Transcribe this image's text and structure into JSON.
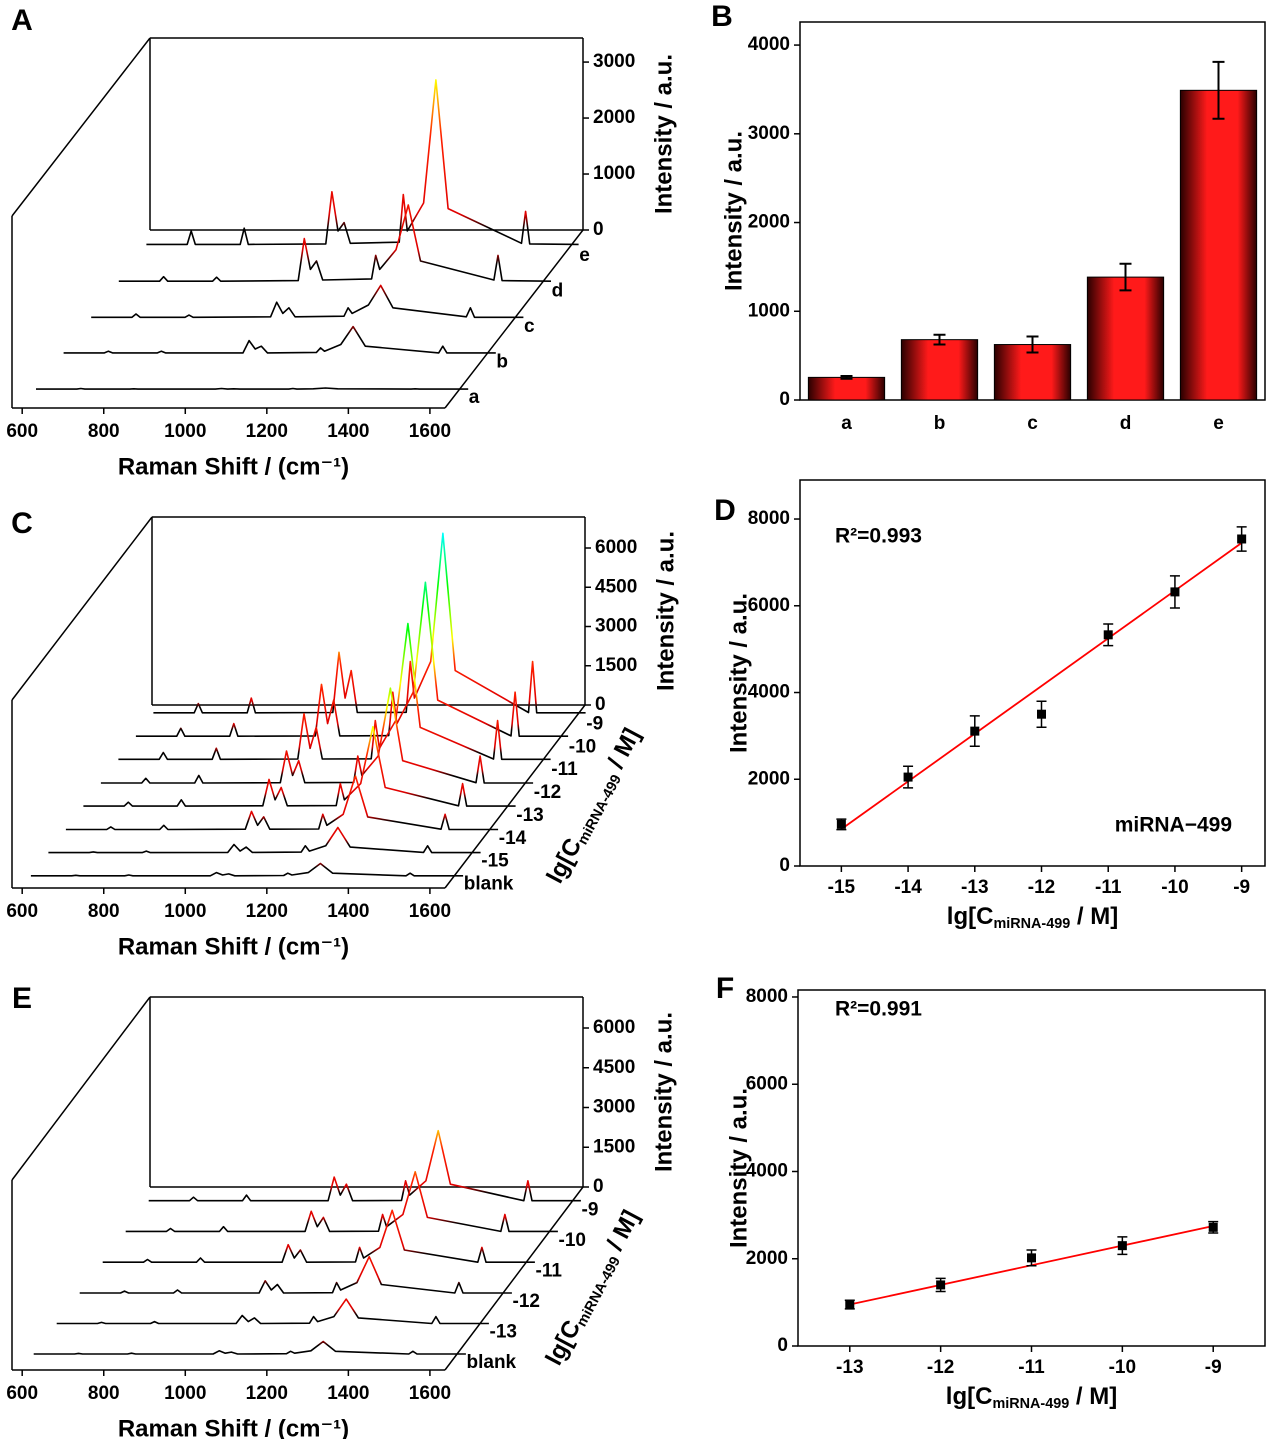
{
  "chart_data": [
    {
      "type": "waterfall",
      "panel_label": "A",
      "x": [
        600,
        700,
        710,
        720,
        830,
        840,
        850,
        1040,
        1055,
        1070,
        1085,
        1100,
        1220,
        1230,
        1240,
        1280,
        1310,
        1340,
        1520,
        1530,
        1540,
        1660
      ],
      "series": [
        {
          "name": "a",
          "values": [
            20,
            20,
            30,
            20,
            20,
            25,
            20,
            20,
            30,
            20,
            25,
            20,
            20,
            30,
            20,
            25,
            40,
            25,
            20,
            25,
            20,
            20
          ]
        },
        {
          "name": "b",
          "values": [
            30,
            30,
            60,
            30,
            30,
            60,
            30,
            30,
            250,
            100,
            150,
            30,
            40,
            120,
            60,
            180,
            500,
            150,
            30,
            150,
            30,
            30
          ]
        },
        {
          "name": "c",
          "values": [
            30,
            30,
            90,
            30,
            30,
            70,
            30,
            40,
            300,
            100,
            200,
            40,
            50,
            200,
            100,
            250,
            600,
            200,
            40,
            200,
            30,
            30
          ]
        },
        {
          "name": "d",
          "values": [
            40,
            40,
            120,
            40,
            40,
            110,
            40,
            50,
            800,
            250,
            400,
            60,
            80,
            500,
            250,
            600,
            1400,
            400,
            60,
            500,
            50,
            40
          ]
        },
        {
          "name": "e",
          "values": [
            60,
            60,
            300,
            60,
            60,
            350,
            60,
            70,
            1000,
            300,
            450,
            80,
            100,
            950,
            300,
            800,
            3000,
            700,
            80,
            650,
            70,
            60
          ]
        }
      ],
      "xlim": [
        575,
        1637
      ],
      "xticks": [
        600,
        800,
        1000,
        1200,
        1400,
        1600
      ],
      "zlim": [
        0,
        3430
      ],
      "zticks": [
        0,
        1000,
        2000,
        3000
      ],
      "x_label": "Raman Shift / (cm⁻¹)",
      "z_label": "Intensity / a.u.",
      "peak_colors": [
        "#000000",
        "#e00000",
        "#ff2000",
        "#ffff00",
        "#00ff00",
        "#00ffff"
      ]
    },
    {
      "type": "bar",
      "panel_label": "B",
      "categories": [
        "a",
        "b",
        "c",
        "d",
        "e"
      ],
      "values": [
        255,
        680,
        625,
        1385,
        3490
      ],
      "errors": [
        15,
        55,
        90,
        150,
        320
      ],
      "color": "#ff1a1a",
      "edge_color": "#2a0000",
      "ylim": [
        0,
        4260
      ],
      "yticks": [
        0,
        1000,
        2000,
        3000,
        4000
      ],
      "y_label": "Intensity / a.u."
    },
    {
      "type": "waterfall",
      "panel_label": "C",
      "x": [
        600,
        700,
        710,
        720,
        830,
        840,
        850,
        1040,
        1055,
        1070,
        1085,
        1100,
        1220,
        1230,
        1240,
        1280,
        1310,
        1340,
        1520,
        1530,
        1540,
        1660
      ],
      "series": [
        {
          "name": "blank",
          "values": [
            30,
            30,
            50,
            30,
            30,
            60,
            30,
            30,
            150,
            60,
            100,
            30,
            40,
            130,
            60,
            150,
            500,
            130,
            30,
            130,
            30,
            30
          ]
        },
        {
          "name": "-15",
          "values": [
            40,
            40,
            70,
            40,
            40,
            100,
            40,
            50,
            350,
            100,
            250,
            50,
            60,
            300,
            100,
            300,
            1000,
            250,
            50,
            300,
            40,
            40
          ]
        },
        {
          "name": "-14",
          "values": [
            50,
            50,
            150,
            50,
            50,
            210,
            50,
            60,
            740,
            210,
            530,
            60,
            70,
            630,
            210,
            630,
            2100,
            530,
            60,
            630,
            50,
            50
          ]
        },
        {
          "name": "-13",
          "values": [
            70,
            70,
            220,
            70,
            70,
            310,
            70,
            80,
            1090,
            310,
            780,
            80,
            90,
            930,
            310,
            930,
            3100,
            780,
            80,
            930,
            70,
            70
          ]
        },
        {
          "name": "-12",
          "values": [
            80,
            80,
            260,
            80,
            80,
            370,
            80,
            90,
            1300,
            370,
            930,
            90,
            100,
            1110,
            370,
            1110,
            3700,
            930,
            90,
            1110,
            80,
            80
          ]
        },
        {
          "name": "-11",
          "values": [
            110,
            110,
            370,
            110,
            110,
            530,
            110,
            120,
            1850,
            530,
            1330,
            120,
            130,
            1590,
            530,
            1590,
            5300,
            1330,
            120,
            1590,
            110,
            110
          ]
        },
        {
          "name": "-10",
          "values": [
            120,
            120,
            420,
            120,
            120,
            600,
            120,
            130,
            2100,
            600,
            1500,
            130,
            140,
            1800,
            600,
            1800,
            6000,
            1500,
            130,
            1800,
            120,
            120
          ]
        },
        {
          "name": "-9",
          "values": [
            140,
            140,
            490,
            140,
            140,
            700,
            140,
            150,
            2450,
            700,
            1750,
            150,
            160,
            2100,
            700,
            2100,
            7000,
            1750,
            150,
            2100,
            140,
            140
          ]
        }
      ],
      "xlim": [
        575,
        1637
      ],
      "xticks": [
        600,
        800,
        1000,
        1200,
        1400,
        1600
      ],
      "zlim": [
        0,
        7185
      ],
      "zticks": [
        0,
        1500,
        3000,
        4500,
        6000
      ],
      "x_label": "Raman Shift / (cm⁻¹)",
      "z_label": "Intensity / a.u.",
      "depth_label": [
        "lg[C",
        "miRNA-499",
        " / M]"
      ],
      "peak_colors": [
        "#000000",
        "#e00000",
        "#ff2000",
        "#ffff00",
        "#00ff00",
        "#00ffff"
      ]
    },
    {
      "type": "scatter",
      "panel_label": "D",
      "x": [
        -15,
        -14,
        -13,
        -12,
        -11,
        -10,
        -9
      ],
      "values": [
        960,
        2050,
        3110,
        3500,
        5330,
        6320,
        7540
      ],
      "errors": [
        120,
        250,
        350,
        300,
        250,
        370,
        280
      ],
      "color": "#000000",
      "fit": {
        "x": [
          -15,
          -9
        ],
        "values": [
          850,
          7450
        ],
        "color": "#ff0000"
      },
      "xlim": [
        -15.62,
        -8.65
      ],
      "xticks": [
        -15,
        -14,
        -13,
        -12,
        -11,
        -10,
        -9
      ],
      "ylim": [
        0,
        8900
      ],
      "yticks": [
        0,
        2000,
        4000,
        6000,
        8000
      ],
      "x_label": [
        "lg[C",
        "miRNA-499",
        " / M]"
      ],
      "y_label": "Intensity / a.u.",
      "annotations": [
        "R²=0.993",
        "miRNA−499"
      ]
    },
    {
      "type": "waterfall",
      "panel_label": "E",
      "x": [
        600,
        700,
        710,
        720,
        830,
        840,
        850,
        1040,
        1055,
        1070,
        1085,
        1100,
        1220,
        1230,
        1240,
        1280,
        1310,
        1340,
        1520,
        1530,
        1540,
        1660
      ],
      "series": [
        {
          "name": "blank",
          "values": [
            30,
            30,
            50,
            30,
            30,
            60,
            30,
            30,
            150,
            60,
            100,
            30,
            40,
            130,
            60,
            150,
            500,
            130,
            30,
            130,
            30,
            30
          ]
        },
        {
          "name": "-13",
          "values": [
            30,
            30,
            70,
            30,
            30,
            100,
            30,
            30,
            330,
            100,
            240,
            30,
            40,
            290,
            100,
            290,
            950,
            240,
            30,
            290,
            30,
            30
          ]
        },
        {
          "name": "-12",
          "values": [
            30,
            30,
            100,
            30,
            30,
            140,
            30,
            30,
            490,
            140,
            350,
            30,
            40,
            420,
            140,
            420,
            1400,
            350,
            30,
            420,
            30,
            30
          ]
        },
        {
          "name": "-11",
          "values": [
            40,
            40,
            140,
            40,
            40,
            200,
            40,
            40,
            700,
            200,
            500,
            40,
            50,
            600,
            200,
            600,
            2000,
            500,
            40,
            600,
            40,
            40
          ]
        },
        {
          "name": "-10",
          "values": [
            50,
            50,
            160,
            50,
            50,
            230,
            50,
            50,
            810,
            230,
            580,
            50,
            60,
            690,
            230,
            690,
            2300,
            580,
            50,
            690,
            50,
            50
          ]
        },
        {
          "name": "-9",
          "values": [
            60,
            60,
            190,
            60,
            60,
            270,
            60,
            60,
            950,
            270,
            680,
            60,
            70,
            810,
            270,
            810,
            2700,
            680,
            60,
            810,
            60,
            60
          ]
        }
      ],
      "xlim": [
        575,
        1637
      ],
      "xticks": [
        600,
        800,
        1000,
        1200,
        1400,
        1600
      ],
      "zlim": [
        0,
        7170
      ],
      "zticks": [
        0,
        1500,
        3000,
        4500,
        6000
      ],
      "x_label": "Raman Shift / (cm⁻¹)",
      "z_label": "Intensity / a.u.",
      "depth_label": [
        "lg[C",
        "miRNA-499",
        " / M]"
      ],
      "peak_colors": [
        "#000000",
        "#e00000",
        "#ff2000",
        "#ffff00",
        "#00ff00",
        "#00ffff"
      ]
    },
    {
      "type": "scatter",
      "panel_label": "F",
      "x": [
        -13,
        -12,
        -11,
        -10,
        -9
      ],
      "values": [
        950,
        1400,
        2020,
        2300,
        2720
      ],
      "errors": [
        100,
        150,
        180,
        200,
        130
      ],
      "color": "#000000",
      "fit": {
        "x": [
          -13,
          -9
        ],
        "values": [
          950,
          2750
        ],
        "color": "#ff0000"
      },
      "xlim": [
        -13.57,
        -8.43
      ],
      "xticks": [
        -13,
        -12,
        -11,
        -10,
        -9
      ],
      "ylim": [
        0,
        8160
      ],
      "yticks": [
        0,
        2000,
        4000,
        6000,
        8000
      ],
      "x_label": [
        "lg[C",
        "miRNA-499",
        " / M]"
      ],
      "y_label": "Intensity / a.u.",
      "annotations": [
        "R²=0.991"
      ]
    }
  ]
}
